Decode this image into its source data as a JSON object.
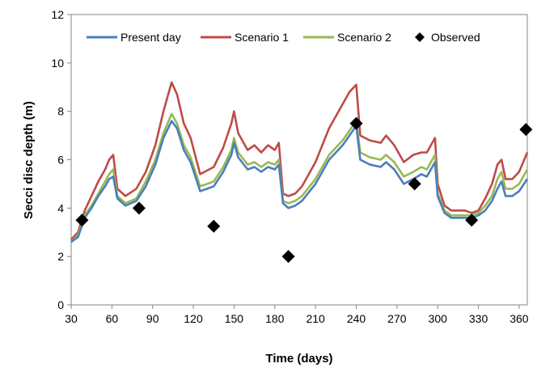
{
  "chart_data": {
    "type": "line",
    "title": "",
    "xlabel": "Time (days)",
    "ylabel": "Secci disc depth (m)",
    "xlim": [
      30,
      366
    ],
    "ylim": [
      0,
      12
    ],
    "xticks": [
      30,
      60,
      90,
      120,
      150,
      180,
      210,
      240,
      270,
      300,
      330,
      360
    ],
    "yticks": [
      0,
      2,
      4,
      6,
      8,
      10,
      12
    ],
    "grid": false,
    "legend": "top",
    "series": [
      {
        "name": "Present day",
        "color": "#4a7ebb",
        "x": [
          30,
          35,
          40,
          45,
          50,
          55,
          58,
          61,
          64,
          70,
          78,
          85,
          92,
          98,
          104,
          108,
          113,
          118,
          125,
          135,
          142,
          148,
          150,
          153,
          160,
          165,
          170,
          175,
          180,
          183,
          186,
          190,
          195,
          200,
          210,
          220,
          230,
          235,
          240,
          243,
          250,
          258,
          262,
          268,
          275,
          282,
          288,
          292,
          295,
          298,
          300,
          305,
          310,
          315,
          320,
          325,
          330,
          335,
          340,
          344,
          347,
          350,
          355,
          360,
          366
        ],
        "y": [
          2.6,
          2.8,
          3.6,
          4.0,
          4.5,
          4.9,
          5.2,
          5.3,
          4.4,
          4.1,
          4.3,
          4.9,
          5.8,
          6.9,
          7.6,
          7.3,
          6.4,
          5.9,
          4.7,
          4.9,
          5.5,
          6.2,
          6.7,
          6.1,
          5.6,
          5.7,
          5.5,
          5.7,
          5.6,
          5.8,
          4.2,
          4.0,
          4.1,
          4.3,
          5.0,
          6.0,
          6.6,
          7.0,
          7.4,
          6.0,
          5.8,
          5.7,
          5.9,
          5.6,
          5.0,
          5.2,
          5.4,
          5.3,
          5.6,
          5.9,
          4.5,
          3.8,
          3.6,
          3.6,
          3.6,
          3.6,
          3.7,
          3.9,
          4.3,
          4.8,
          5.1,
          4.5,
          4.5,
          4.7,
          5.2
        ]
      },
      {
        "name": "Scenario 1",
        "color": "#be4b48",
        "x": [
          30,
          35,
          40,
          45,
          50,
          55,
          58,
          61,
          64,
          70,
          78,
          85,
          92,
          98,
          104,
          108,
          113,
          118,
          125,
          135,
          142,
          148,
          150,
          153,
          160,
          165,
          170,
          175,
          180,
          183,
          186,
          190,
          195,
          200,
          210,
          220,
          230,
          235,
          240,
          243,
          250,
          258,
          262,
          268,
          275,
          282,
          288,
          292,
          295,
          298,
          300,
          305,
          310,
          315,
          320,
          325,
          330,
          335,
          340,
          344,
          347,
          350,
          355,
          360,
          366
        ],
        "y": [
          2.7,
          3.0,
          3.9,
          4.5,
          5.1,
          5.6,
          6.0,
          6.2,
          4.8,
          4.5,
          4.8,
          5.5,
          6.6,
          8.0,
          9.2,
          8.7,
          7.5,
          6.9,
          5.4,
          5.7,
          6.5,
          7.5,
          8.0,
          7.1,
          6.4,
          6.6,
          6.3,
          6.6,
          6.4,
          6.7,
          4.6,
          4.5,
          4.6,
          4.9,
          5.9,
          7.3,
          8.3,
          8.8,
          9.1,
          7.0,
          6.8,
          6.7,
          7.0,
          6.6,
          5.9,
          6.2,
          6.3,
          6.3,
          6.6,
          6.9,
          5.0,
          4.1,
          3.9,
          3.9,
          3.9,
          3.8,
          3.9,
          4.4,
          5.0,
          5.8,
          6.0,
          5.2,
          5.2,
          5.5,
          6.3
        ]
      },
      {
        "name": "Scenario 2",
        "color": "#98b954",
        "x": [
          30,
          35,
          40,
          45,
          50,
          55,
          58,
          61,
          64,
          70,
          78,
          85,
          92,
          98,
          104,
          108,
          113,
          118,
          125,
          135,
          142,
          148,
          150,
          153,
          160,
          165,
          170,
          175,
          180,
          183,
          186,
          190,
          195,
          200,
          210,
          220,
          230,
          235,
          240,
          243,
          250,
          258,
          262,
          268,
          275,
          282,
          288,
          292,
          295,
          298,
          300,
          305,
          310,
          315,
          320,
          325,
          330,
          335,
          340,
          344,
          347,
          350,
          355,
          360,
          366
        ],
        "y": [
          2.6,
          2.9,
          3.7,
          4.1,
          4.6,
          5.1,
          5.4,
          5.6,
          4.5,
          4.2,
          4.4,
          5.1,
          6.0,
          7.1,
          7.9,
          7.5,
          6.6,
          6.1,
          4.9,
          5.1,
          5.7,
          6.4,
          6.9,
          6.3,
          5.8,
          5.9,
          5.7,
          5.9,
          5.8,
          6.0,
          4.3,
          4.2,
          4.3,
          4.5,
          5.2,
          6.2,
          6.8,
          7.2,
          7.6,
          6.3,
          6.1,
          6.0,
          6.2,
          5.9,
          5.3,
          5.5,
          5.7,
          5.6,
          5.9,
          6.2,
          4.6,
          3.9,
          3.7,
          3.7,
          3.7,
          3.7,
          3.8,
          4.1,
          4.5,
          5.2,
          5.5,
          4.8,
          4.8,
          5.0,
          5.6
        ]
      },
      {
        "name": "Observed",
        "color": "#000000",
        "marker": "diamond",
        "x": [
          38,
          80,
          135,
          190,
          240,
          283,
          325,
          365
        ],
        "y": [
          3.5,
          4.0,
          3.25,
          2.0,
          7.5,
          5.0,
          3.5,
          7.25
        ]
      }
    ]
  }
}
